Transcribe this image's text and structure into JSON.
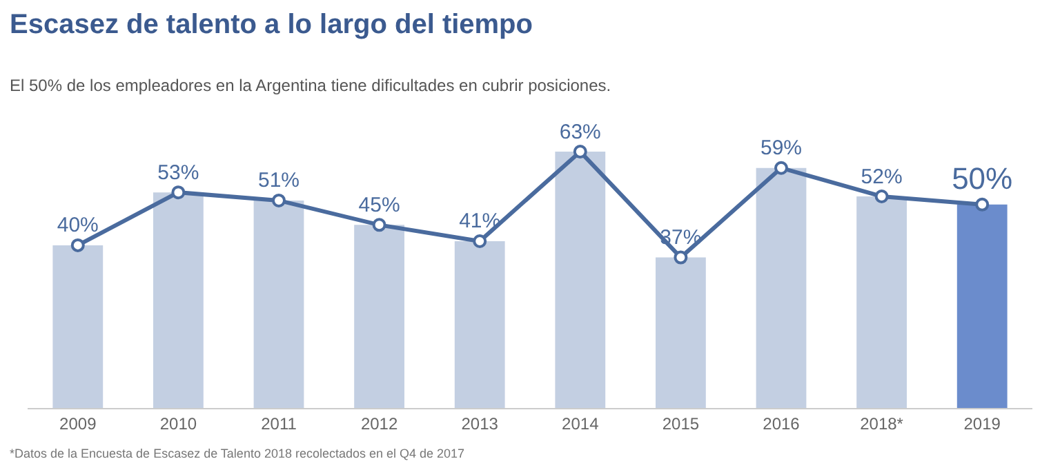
{
  "chart_data": {
    "type": "bar",
    "title": "Escasez de talento a lo largo del tiempo",
    "subtitle": "El 50% de los empleadores en la Argentina tiene dificultades en cubrir posiciones.",
    "categories": [
      "2009",
      "2010",
      "2011",
      "2012",
      "2013",
      "2014",
      "2015",
      "2016",
      "2018*",
      "2019"
    ],
    "series": [
      {
        "colors": [
          "#c3cfe2",
          "#c3cfe2",
          "#c3cfe2",
          "#c3cfe2",
          "#c3cfe2",
          "#c3cfe2",
          "#c3cfe2",
          "#c3cfe2",
          "#c3cfe2",
          "#6b8ccc"
        ],
        "values": [
          40,
          53,
          51,
          45,
          41,
          63,
          37,
          59,
          52,
          50
        ]
      },
      {
        "type": "line",
        "color": "#4a6b9e",
        "marker": "circle",
        "values": [
          40,
          53,
          51,
          45,
          41,
          63,
          37,
          59,
          52,
          50
        ],
        "value_labels": [
          "40%",
          "53%",
          "51%",
          "45%",
          "41%",
          "63%",
          "37%",
          "59%",
          "52%",
          "50%"
        ]
      }
    ],
    "tick_labels": "x",
    "grid": false,
    "annotations": [
      "*Datos de la Encuesta de Escasez de Talento 2018 recolectados en el Q4 de 2017"
    ]
  }
}
